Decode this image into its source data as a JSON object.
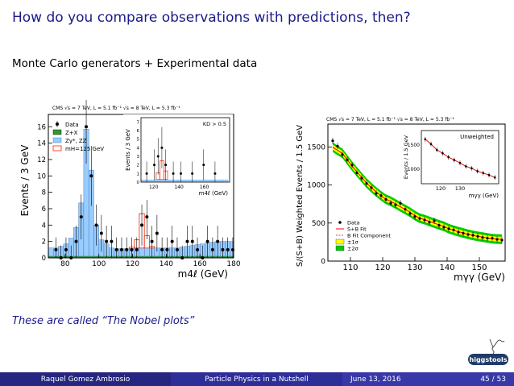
{
  "slide": {
    "title": "How do you compare observations with predictions, then?",
    "subtitle": "Monte Carlo generators + Experimental data",
    "caption": "These are called “The Nobel plots”"
  },
  "footer": {
    "author": "Raquel Gomez Ambrosio",
    "talk": "Particle Physics in a Nutshell",
    "date": "June 13, 2016",
    "page": "45 / 53"
  },
  "logo": {
    "text": "higgstools",
    "icon": "feynman-diagram-icon"
  },
  "chart_data": [
    {
      "type": "bar",
      "header": "CMS   √s = 7 TeV, L = 5.1 fb⁻¹   √s = 8 TeV, L = 5.3 fb⁻¹",
      "xlabel": "m4ℓ (GeV)",
      "ylabel": "Events / 3 GeV",
      "xlim": [
        70,
        180
      ],
      "ylim": [
        0,
        17.5
      ],
      "xticks": [
        80,
        100,
        120,
        140,
        160,
        180
      ],
      "yticks": [
        0,
        2,
        4,
        6,
        8,
        10,
        12,
        14,
        16
      ],
      "legend": [
        "Data",
        "Z+X",
        "Zγ*, ZZ",
        "mH=125 GeV"
      ],
      "legend_position": "top-left",
      "colors": {
        "zz": "#99ccff",
        "zx": "#339933",
        "signal": "#ff2200",
        "data": "#000000"
      },
      "bin_edges": [
        70,
        73,
        76,
        79,
        82,
        85,
        88,
        91,
        94,
        97,
        100,
        103,
        106,
        109,
        112,
        115,
        118,
        121,
        124,
        127,
        130,
        133,
        136,
        139,
        142,
        145,
        148,
        151,
        154,
        157,
        160,
        163,
        166,
        169,
        172,
        175,
        178,
        181
      ],
      "zz": [
        1.0,
        1.0,
        1.2,
        1.5,
        2.2,
        3.5,
        6.5,
        15.5,
        10.5,
        3.8,
        2.0,
        1.5,
        1.0,
        0.9,
        0.9,
        0.9,
        0.9,
        1.0,
        1.0,
        1.0,
        1.0,
        1.0,
        1.0,
        1.0,
        1.0,
        1.0,
        1.1,
        1.2,
        1.3,
        1.4,
        1.5,
        1.6,
        1.7,
        1.8,
        1.8,
        1.8,
        1.8
      ],
      "zx": [
        0.2,
        0.2,
        0.2,
        0.2,
        0.2,
        0.2,
        0.2,
        0.2,
        0.2,
        0.2,
        0.2,
        0.2,
        0.2,
        0.2,
        0.2,
        0.2,
        0.2,
        0.2,
        0.2,
        0.2,
        0.2,
        0.2,
        0.2,
        0.2,
        0.2,
        0.2,
        0.2,
        0.2,
        0.2,
        0.2,
        0.2,
        0.2,
        0.2,
        0.2,
        0.2,
        0.2,
        0.2
      ],
      "signal": [
        0,
        0,
        0,
        0,
        0,
        0,
        0,
        0,
        0,
        0,
        0,
        0,
        0,
        0,
        0,
        0,
        0.2,
        1.0,
        4.2,
        1.5,
        0.2,
        0,
        0,
        0,
        0,
        0,
        0,
        0,
        0,
        0,
        0,
        0,
        0,
        0,
        0,
        0,
        0
      ],
      "data_x": [
        74.5,
        77.5,
        80.5,
        83.5,
        86.5,
        89.5,
        92.5,
        95.5,
        98.5,
        101.5,
        104.5,
        107.5,
        110.5,
        113.5,
        116.5,
        119.5,
        122.5,
        125.5,
        128.5,
        131.5,
        134.5,
        137.5,
        140.5,
        143.5,
        146.5,
        149.5,
        152.5,
        155.5,
        158.5,
        161.5,
        164.5,
        167.5,
        170.5,
        173.5,
        176.5,
        179.5
      ],
      "data_y": [
        1,
        0,
        1,
        0,
        2,
        5,
        16,
        10,
        4,
        3,
        2,
        2,
        1,
        1,
        1,
        1,
        1,
        4,
        5,
        2,
        3,
        1,
        1,
        2,
        1,
        0,
        2,
        2,
        1,
        0,
        2,
        1,
        2,
        1,
        1,
        1
      ]
    },
    {
      "type": "line",
      "role": "inset",
      "xlabel": "m4ℓ (GeV)",
      "ylabel": "Events / 3 GeV",
      "annotation": "KD > 0.5",
      "xlim": [
        110,
        180
      ],
      "ylim": [
        0,
        7.5
      ],
      "xticks": [
        120,
        140,
        160
      ],
      "yticks": [
        0,
        1,
        2,
        3,
        4,
        5,
        6,
        7
      ],
      "bin_edges": [
        110,
        113,
        116,
        119,
        122,
        125,
        128,
        131,
        134,
        137,
        140,
        143,
        146,
        149,
        152,
        155,
        158,
        161,
        164,
        167,
        170,
        173,
        176,
        179
      ],
      "zz": [
        0.3,
        0.3,
        0.3,
        0.3,
        0.3,
        0.3,
        0.3,
        0.3,
        0.3,
        0.3,
        0.3,
        0.3,
        0.3,
        0.3,
        0.3,
        0.3,
        0.3,
        0.3,
        0.3,
        0.3,
        0.3,
        0.3,
        0.3
      ],
      "signal": [
        0,
        0,
        0,
        0,
        0.8,
        2.2,
        1.0,
        0,
        0,
        0,
        0,
        0,
        0,
        0,
        0,
        0,
        0,
        0,
        0,
        0,
        0,
        0,
        0
      ],
      "data_x": [
        114.5,
        120.5,
        123.5,
        126.5,
        129.5,
        135.5,
        141.5,
        150.5,
        159.5,
        168.5
      ],
      "data_y": [
        1,
        2,
        3,
        4,
        2,
        1,
        1,
        1,
        2,
        1
      ]
    },
    {
      "type": "scatter",
      "header": "CMS   √s = 7 TeV, L = 5.1 fb⁻¹   √s = 8 TeV, L = 5.3 fb⁻¹",
      "xlabel": "mγγ (GeV)",
      "ylabel": "S/(S+B) Weighted Events / 1.5 GeV",
      "xlim": [
        103,
        158
      ],
      "ylim": [
        0,
        1800
      ],
      "xticks": [
        110,
        120,
        130,
        140,
        150
      ],
      "yticks": [
        0,
        500,
        1000,
        1500
      ],
      "legend": [
        "Data",
        "S+B Fit",
        "B Fit Component",
        "±1σ",
        "±2σ"
      ],
      "legend_position": "bottom-left",
      "colors": {
        "sb_fit": "#ff0000",
        "b_fit": "#cc0000",
        "band1": "#ffff00",
        "band2": "#00cc00",
        "data": "#000000"
      },
      "x": [
        104.5,
        106,
        107.5,
        109,
        110.5,
        112,
        113.5,
        115,
        116.5,
        118,
        119.5,
        121,
        122.5,
        124,
        125.5,
        127,
        128.5,
        130,
        131.5,
        133,
        134.5,
        136,
        137.5,
        139,
        140.5,
        142,
        143.5,
        145,
        146.5,
        148,
        149.5,
        151,
        152.5,
        154,
        155.5,
        157
      ],
      "y": [
        1580,
        1510,
        1400,
        1330,
        1260,
        1160,
        1090,
        1020,
        965,
        890,
        860,
        810,
        760,
        740,
        760,
        680,
        625,
        585,
        560,
        540,
        510,
        530,
        470,
        445,
        425,
        410,
        380,
        365,
        350,
        340,
        325,
        310,
        300,
        300,
        285,
        275
      ]
    },
    {
      "type": "scatter",
      "role": "inset",
      "annotation": "Unweighted",
      "xlabel": "mγγ (GeV)",
      "ylabel": "Events / 1.5 GeV",
      "xlim": [
        110,
        150
      ],
      "ylim": [
        700,
        1800
      ],
      "xticks": [
        120,
        130
      ],
      "yticks": [
        1000,
        1500
      ],
      "x": [
        112,
        115,
        118,
        121,
        124,
        127,
        130,
        133,
        136,
        139,
        142,
        145,
        148
      ],
      "y": [
        1620,
        1520,
        1400,
        1330,
        1250,
        1190,
        1130,
        1060,
        1020,
        960,
        920,
        880,
        830
      ]
    }
  ]
}
